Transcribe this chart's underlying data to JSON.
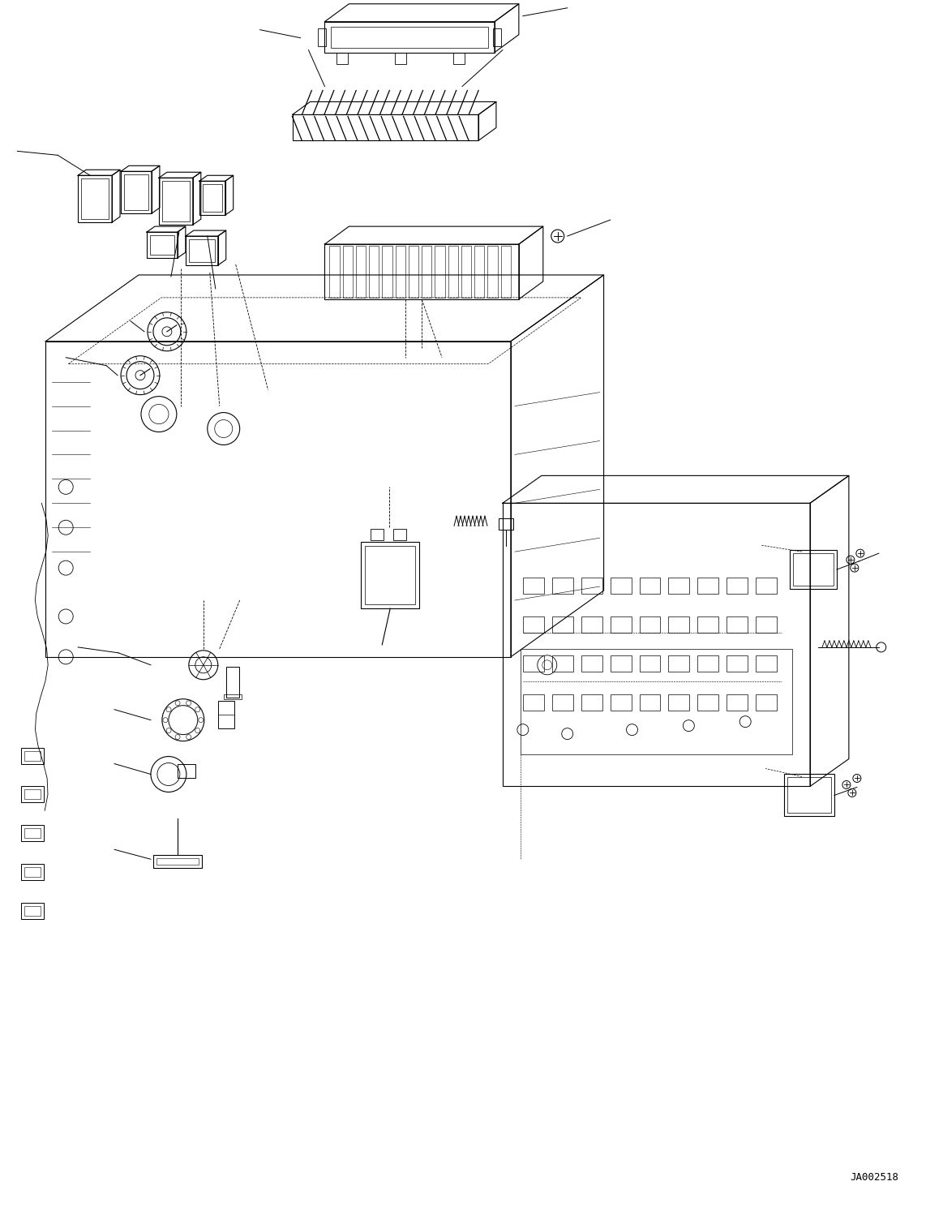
{
  "watermark": "JA002518",
  "background_color": "#ffffff",
  "line_color": "#000000",
  "fig_width": 11.63,
  "fig_height": 14.88,
  "dpi": 100
}
